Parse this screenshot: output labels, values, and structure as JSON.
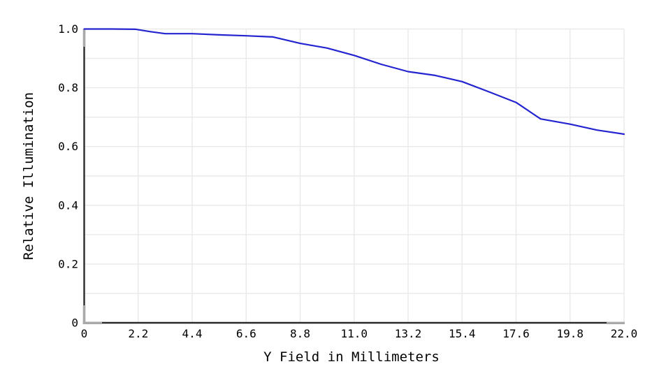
{
  "chart_data": {
    "type": "line",
    "title": "",
    "xlabel": "Y Field in Millimeters",
    "ylabel": "Relative Illumination",
    "xlim": [
      0,
      22
    ],
    "ylim": [
      0,
      1.0
    ],
    "grid": {
      "on": true,
      "x_step": 2.2,
      "y_step": 0.1,
      "color": "#e9e9e9"
    },
    "legend": {
      "visible": false
    },
    "x_ticks": [
      {
        "value": 0,
        "label": "0"
      },
      {
        "value": 2.2,
        "label": "2.2"
      },
      {
        "value": 4.4,
        "label": "4.4"
      },
      {
        "value": 6.6,
        "label": "6.6"
      },
      {
        "value": 8.8,
        "label": "8.8"
      },
      {
        "value": 11.0,
        "label": "11.0"
      },
      {
        "value": 13.2,
        "label": "13.2"
      },
      {
        "value": 15.4,
        "label": "15.4"
      },
      {
        "value": 17.6,
        "label": "17.6"
      },
      {
        "value": 19.8,
        "label": "19.8"
      },
      {
        "value": 22.0,
        "label": "22.0"
      }
    ],
    "y_ticks": [
      {
        "value": 1.0,
        "label": "1.0"
      },
      {
        "value": 0.8,
        "label": "0.8"
      },
      {
        "value": 0.6,
        "label": "0.6"
      },
      {
        "value": 0.4,
        "label": "0.4"
      },
      {
        "value": 0.2,
        "label": "0.2"
      },
      {
        "value": 0,
        "label": "0"
      }
    ],
    "series": [
      {
        "name": "Relative Illumination",
        "color": "#2424d0",
        "x": [
          0,
          1.1,
          2.1,
          2.7,
          3.3,
          4.4,
          5.5,
          6.6,
          7.7,
          8.8,
          9.9,
          11.0,
          12.1,
          13.2,
          14.3,
          15.4,
          16.5,
          17.6,
          18.6,
          19.8,
          20.9,
          22.0
        ],
        "y": [
          1.0,
          1.0,
          0.999,
          0.991,
          0.984,
          0.984,
          0.98,
          0.977,
          0.973,
          0.951,
          0.935,
          0.91,
          0.88,
          0.855,
          0.842,
          0.821,
          0.786,
          0.75,
          0.694,
          0.676,
          0.656,
          0.642
        ]
      }
    ],
    "colors": {
      "background": "#ffffff",
      "axis": "#2b2b2b",
      "tick_nub": "#a9a9a9",
      "text": "#000000"
    }
  }
}
